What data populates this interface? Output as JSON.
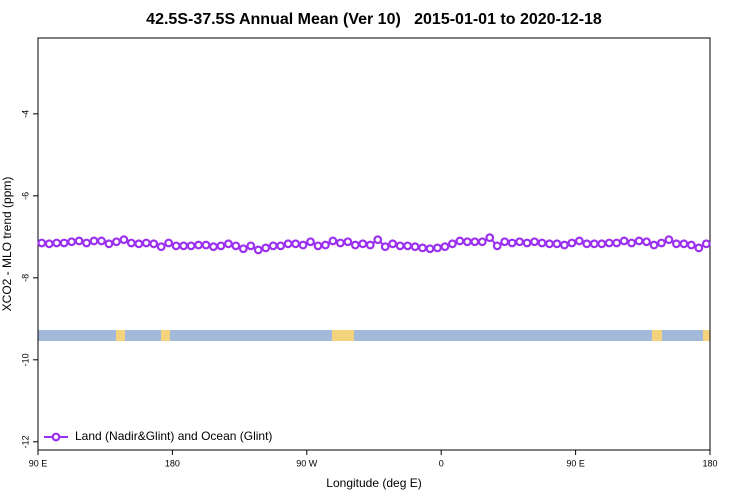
{
  "chart_data": {
    "type": "line",
    "title": "42.5S-37.5S Annual Mean (Ver 10)   2015-01-01 to 2020-12-18",
    "xlabel": "Longitude (deg E)",
    "ylabel": "XCO2 - MLO trend (ppm)",
    "xlim": [
      90,
      540
    ],
    "xticks": [
      {
        "value": 90,
        "label": "90 E"
      },
      {
        "value": 180,
        "label": "180"
      },
      {
        "value": 270,
        "label": "90 W"
      },
      {
        "value": 360,
        "label": "0"
      },
      {
        "value": 450,
        "label": "90 E"
      },
      {
        "value": 540,
        "label": "180"
      }
    ],
    "ylim": [
      -12.2,
      -2.15
    ],
    "yticks": [
      -4,
      -6,
      -8,
      -10,
      -12
    ],
    "legend": "lower left",
    "series": [
      {
        "name": "Land (Nadir&Glint) and Ocean (Glint)",
        "color": "#9b30f0",
        "x": [
          92.5,
          97.5,
          102.5,
          107.5,
          112.5,
          117.5,
          122.5,
          127.5,
          132.5,
          137.5,
          142.5,
          147.5,
          152.5,
          157.5,
          162.5,
          167.5,
          172.5,
          177.5,
          182.5,
          187.5,
          192.5,
          197.5,
          202.5,
          207.5,
          212.5,
          217.5,
          222.5,
          227.5,
          232.5,
          237.5,
          242.5,
          247.5,
          252.5,
          257.5,
          262.5,
          267.5,
          272.5,
          277.5,
          282.5,
          287.5,
          292.5,
          297.5,
          302.5,
          307.5,
          312.5,
          317.5,
          322.5,
          327.5,
          332.5,
          337.5,
          342.5,
          347.5,
          352.5,
          357.5,
          362.5,
          367.5,
          372.5,
          377.5,
          382.5,
          387.5,
          392.5,
          397.5,
          402.5,
          407.5,
          412.5,
          417.5,
          422.5,
          427.5,
          432.5,
          437.5,
          442.5,
          447.5,
          452.5,
          457.5,
          462.5,
          467.5,
          472.5,
          477.5,
          482.5,
          487.5,
          492.5,
          497.5,
          502.5,
          507.5,
          512.5,
          517.5,
          522.5,
          527.5,
          532.5,
          537.5
        ],
        "values": [
          -7.15,
          -7.17,
          -7.15,
          -7.15,
          -7.12,
          -7.1,
          -7.15,
          -7.1,
          -7.1,
          -7.17,
          -7.12,
          -7.07,
          -7.15,
          -7.17,
          -7.15,
          -7.17,
          -7.24,
          -7.15,
          -7.22,
          -7.22,
          -7.22,
          -7.2,
          -7.2,
          -7.24,
          -7.22,
          -7.17,
          -7.22,
          -7.29,
          -7.22,
          -7.32,
          -7.27,
          -7.22,
          -7.22,
          -7.17,
          -7.17,
          -7.2,
          -7.12,
          -7.22,
          -7.2,
          -7.1,
          -7.15,
          -7.12,
          -7.2,
          -7.17,
          -7.2,
          -7.07,
          -7.24,
          -7.17,
          -7.22,
          -7.22,
          -7.24,
          -7.27,
          -7.29,
          -7.27,
          -7.24,
          -7.17,
          -7.1,
          -7.12,
          -7.12,
          -7.12,
          -7.02,
          -7.22,
          -7.12,
          -7.15,
          -7.12,
          -7.15,
          -7.12,
          -7.15,
          -7.17,
          -7.17,
          -7.2,
          -7.15,
          -7.1,
          -7.17,
          -7.17,
          -7.17,
          -7.15,
          -7.15,
          -7.1,
          -7.15,
          -7.1,
          -7.12,
          -7.2,
          -7.15,
          -7.07,
          -7.17,
          -7.17,
          -7.2,
          -7.27,
          -7.17
        ]
      }
    ]
  }
}
